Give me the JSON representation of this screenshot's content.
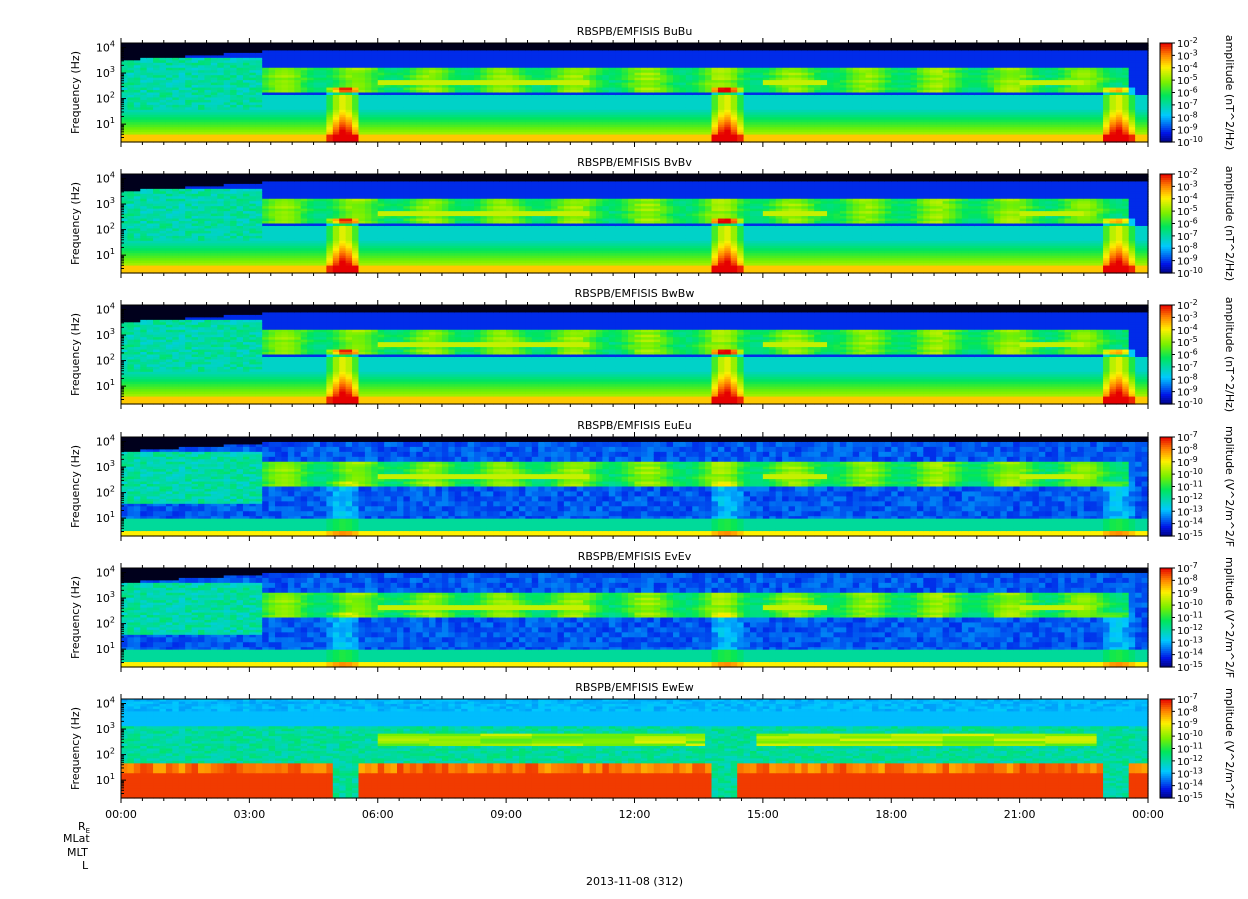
{
  "figure": {
    "date_label": "2013-11-08 (312)",
    "ephemeris_labels": [
      "R",
      "MLat",
      "MLT",
      "L"
    ],
    "ephemeris_subscript": "E"
  },
  "chart_data": [
    {
      "type": "heatmap",
      "title": "RBSPB/EMFISIS  BuBu",
      "ylabel": "Frequency (Hz)",
      "yscale": "log",
      "ylim": [
        2,
        15000
      ],
      "yticks": [
        10,
        100,
        1000,
        10000
      ],
      "xlim_hours": [
        0,
        24
      ],
      "xticks": [
        "00:00",
        "03:00",
        "06:00",
        "09:00",
        "12:00",
        "15:00",
        "18:00",
        "21:00",
        "00:00"
      ],
      "colorbar": {
        "label": "amplitude (nT^2/Hz)",
        "exponents": [
          -2,
          -3,
          -4,
          -5,
          -6,
          -7,
          -8,
          -9,
          -10
        ]
      }
    },
    {
      "type": "heatmap",
      "title": "RBSPB/EMFISIS  BvBv",
      "ylabel": "Frequency (Hz)",
      "yscale": "log",
      "ylim": [
        2,
        15000
      ],
      "yticks": [
        10,
        100,
        1000,
        10000
      ],
      "xlim_hours": [
        0,
        24
      ],
      "xticks": [
        "00:00",
        "03:00",
        "06:00",
        "09:00",
        "12:00",
        "15:00",
        "18:00",
        "21:00",
        "00:00"
      ],
      "colorbar": {
        "label": "amplitude (nT^2/Hz)",
        "exponents": [
          -2,
          -3,
          -4,
          -5,
          -6,
          -7,
          -8,
          -9,
          -10
        ]
      }
    },
    {
      "type": "heatmap",
      "title": "RBSPB/EMFISIS  BwBw",
      "ylabel": "Frequency (Hz)",
      "yscale": "log",
      "ylim": [
        2,
        15000
      ],
      "yticks": [
        10,
        100,
        1000,
        10000
      ],
      "xlim_hours": [
        0,
        24
      ],
      "xticks": [
        "00:00",
        "03:00",
        "06:00",
        "09:00",
        "12:00",
        "15:00",
        "18:00",
        "21:00",
        "00:00"
      ],
      "colorbar": {
        "label": "amplitude (nT^2/Hz)",
        "exponents": [
          -2,
          -3,
          -4,
          -5,
          -6,
          -7,
          -8,
          -9,
          -10
        ]
      }
    },
    {
      "type": "heatmap",
      "title": "RBSPB/EMFISIS  EuEu",
      "ylabel": "Frequency (Hz)",
      "yscale": "log",
      "ylim": [
        2,
        15000
      ],
      "yticks": [
        10,
        100,
        1000,
        10000
      ],
      "xlim_hours": [
        0,
        24
      ],
      "xticks": [
        "00:00",
        "03:00",
        "06:00",
        "09:00",
        "12:00",
        "15:00",
        "18:00",
        "21:00",
        "00:00"
      ],
      "colorbar": {
        "label": "mplitude (V^2/m^2/F",
        "exponents": [
          -7,
          -8,
          -9,
          -10,
          -11,
          -12,
          -13,
          -14,
          -15
        ]
      }
    },
    {
      "type": "heatmap",
      "title": "RBSPB/EMFISIS  EvEv",
      "ylabel": "Frequency (Hz)",
      "yscale": "log",
      "ylim": [
        2,
        15000
      ],
      "yticks": [
        10,
        100,
        1000,
        10000
      ],
      "xlim_hours": [
        0,
        24
      ],
      "xticks": [
        "00:00",
        "03:00",
        "06:00",
        "09:00",
        "12:00",
        "15:00",
        "18:00",
        "21:00",
        "00:00"
      ],
      "colorbar": {
        "label": "mplitude (V^2/m^2/F",
        "exponents": [
          -7,
          -8,
          -9,
          -10,
          -11,
          -12,
          -13,
          -14,
          -15
        ]
      }
    },
    {
      "type": "heatmap",
      "title": "RBSPB/EMFISIS  EwEw",
      "ylabel": "Frequency (Hz)",
      "yscale": "log",
      "ylim": [
        2,
        15000
      ],
      "yticks": [
        10,
        100,
        1000,
        10000
      ],
      "xlim_hours": [
        0,
        24
      ],
      "xticks": [
        "00:00",
        "03:00",
        "06:00",
        "09:00",
        "12:00",
        "15:00",
        "18:00",
        "21:00",
        "00:00"
      ],
      "colorbar": {
        "label": "mplitude (V^2/m^2/F",
        "exponents": [
          -7,
          -8,
          -9,
          -10,
          -11,
          -12,
          -13,
          -14,
          -15
        ]
      }
    }
  ]
}
